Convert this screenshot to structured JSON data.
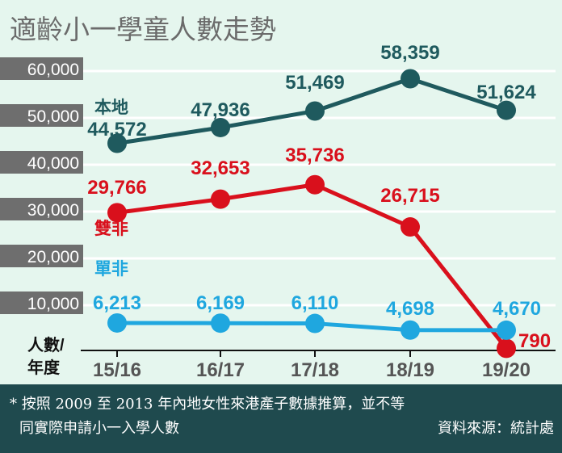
{
  "title": "適齡小一學童人數走勢",
  "axis_corner": {
    "line1": "人數/",
    "line2": "年度"
  },
  "footer": {
    "note": "* 按照 2009 至 2013 年內地女性來港產子數據推算，並不等",
    "note2": "同實際申請小一入學人數",
    "source": "資料來源：統計處"
  },
  "chart_data": {
    "type": "line",
    "title": "適齡小一學童人數走勢",
    "categories": [
      "15/16",
      "16/17",
      "17/18",
      "18/19",
      "19/20"
    ],
    "ylim": [
      0,
      60000
    ],
    "yticks": [
      10000,
      20000,
      30000,
      40000,
      50000,
      60000
    ],
    "ytick_labels": [
      "10,000",
      "20,000",
      "30,000",
      "40,000",
      "50,000",
      "60,000"
    ],
    "grid": "horizontal",
    "series": [
      {
        "name": "本地",
        "color": "#1f5a5e",
        "values": [
          44572,
          47936,
          51469,
          58359,
          51624
        ],
        "labels": [
          "44,572",
          "47,936",
          "51,469",
          "58,359",
          "51,624"
        ]
      },
      {
        "name": "雙非",
        "color": "#d9101c",
        "values": [
          29766,
          32653,
          35736,
          26715,
          790
        ],
        "labels": [
          "29,766",
          "32,653",
          "35,736",
          "26,715",
          "790"
        ]
      },
      {
        "name": "單非",
        "color": "#1fa7df",
        "values": [
          6213,
          6169,
          6110,
          4698,
          4670
        ],
        "labels": [
          "6,213",
          "6,169",
          "6,110",
          "4,698",
          "4,670"
        ]
      }
    ]
  }
}
